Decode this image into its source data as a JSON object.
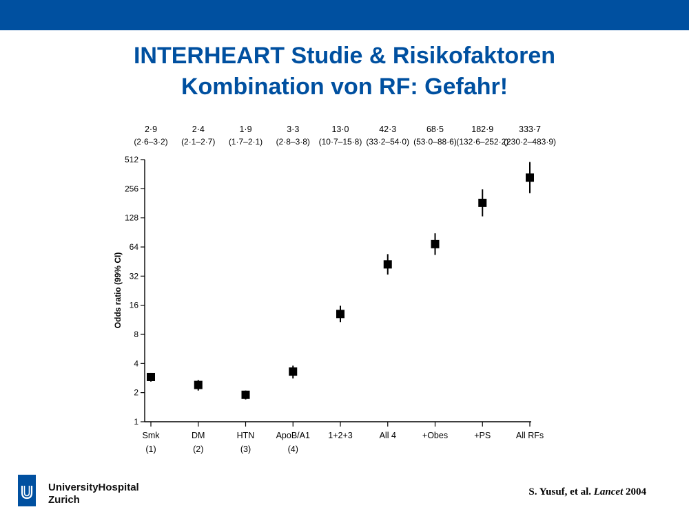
{
  "header": {
    "bar_color": "#0050A0",
    "title_color": "#0050A0",
    "title_line1": "INTERHEART Studie & Risikofaktoren",
    "title_line2": "Kombination von RF: Gefahr!"
  },
  "chart_data": {
    "type": "scatter",
    "ylabel": "Odds ratio (99% CI)",
    "xlabel": "",
    "y_scale": "log2",
    "ylim": [
      1,
      512
    ],
    "y_ticks": [
      "1",
      "2",
      "4",
      "8",
      "16",
      "32",
      "64",
      "128",
      "256",
      "512"
    ],
    "categories": [
      {
        "label": "Smk",
        "sub": "(1)"
      },
      {
        "label": "DM",
        "sub": "(2)"
      },
      {
        "label": "HTN",
        "sub": "(3)"
      },
      {
        "label": "ApoB/A1",
        "sub": "(4)"
      },
      {
        "label": "1+2+3",
        "sub": ""
      },
      {
        "label": "All 4",
        "sub": ""
      },
      {
        "label": "+Obes",
        "sub": ""
      },
      {
        "label": "+PS",
        "sub": ""
      },
      {
        "label": "All RFs",
        "sub": ""
      }
    ],
    "series": [
      {
        "values": [
          2.9,
          2.4,
          1.9,
          3.3,
          13.0,
          42.3,
          68.5,
          182.9,
          333.7
        ],
        "ci_low": [
          2.6,
          2.1,
          1.7,
          2.8,
          10.7,
          33.2,
          53.0,
          132.6,
          230.2
        ],
        "ci_high": [
          3.2,
          2.7,
          2.1,
          3.8,
          15.8,
          54.0,
          88.6,
          252.2,
          483.9
        ]
      }
    ],
    "value_labels": [
      "2·9",
      "2·4",
      "1·9",
      "3·3",
      "13·0",
      "42·3",
      "68·5",
      "182·9",
      "333·7"
    ],
    "ci_labels": [
      "(2·6–3·2)",
      "(2·1–2·7)",
      "(1·7–2·1)",
      "(2·8–3·8)",
      "(10·7–15·8)",
      "(33·2–54·0)",
      "(53·0–88·6)",
      "(132·6–252·2)",
      "(230·2–483·9)"
    ],
    "grid": false,
    "legend": "none"
  },
  "footer": {
    "institution_line1": "UniversityHospital",
    "institution_line2": "Zurich",
    "logo_color": "#0050A0",
    "citation_prefix": "S. Yusuf, et al. ",
    "citation_journal": "Lancet",
    "citation_year": " 2004"
  }
}
